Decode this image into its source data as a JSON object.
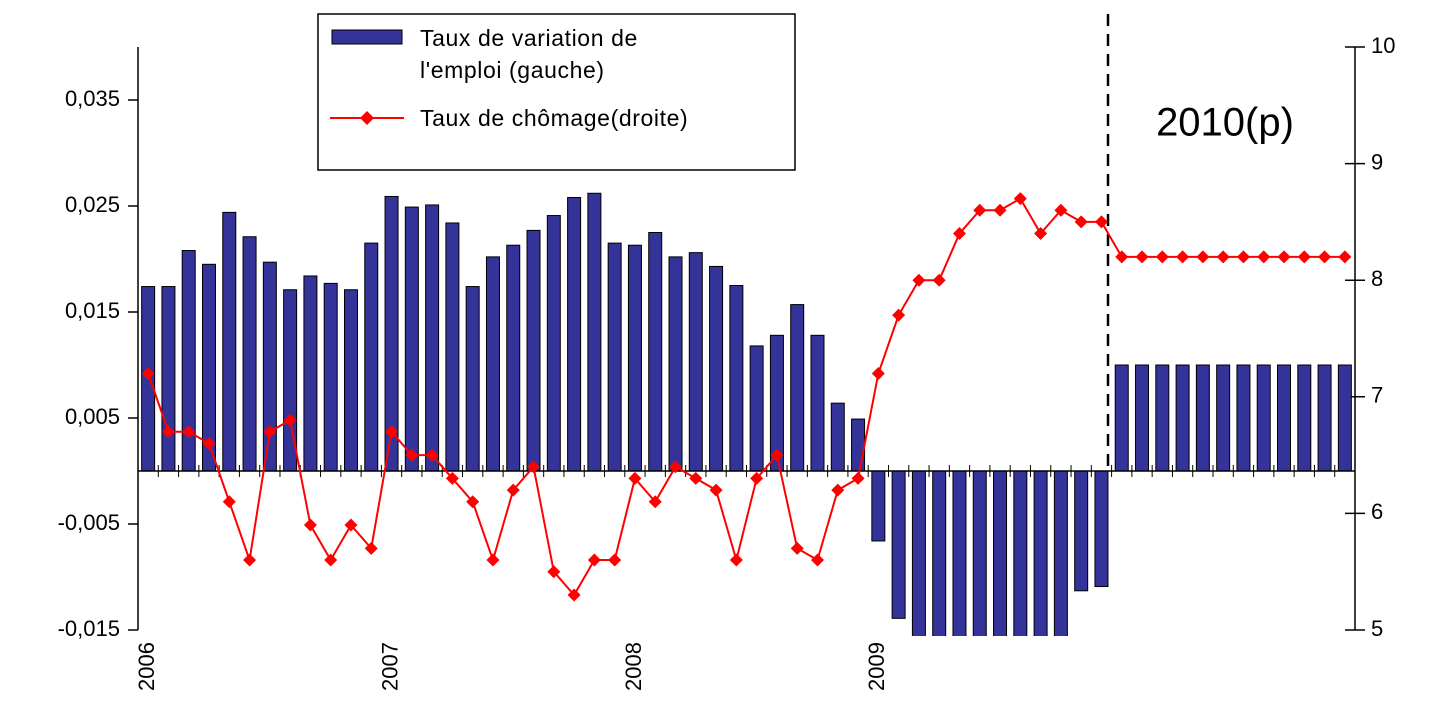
{
  "chart_data": {
    "type": "combo",
    "annotation": "2010(p)",
    "categories": [
      "2006",
      null,
      null,
      null,
      null,
      null,
      null,
      null,
      null,
      null,
      null,
      null,
      "2007",
      null,
      null,
      null,
      null,
      null,
      null,
      null,
      null,
      null,
      null,
      null,
      "2008",
      null,
      null,
      null,
      null,
      null,
      null,
      null,
      null,
      null,
      null,
      null,
      "2009",
      null,
      null,
      null,
      null,
      null,
      null,
      null,
      null,
      null,
      null,
      null,
      null,
      null,
      null,
      null,
      null,
      null,
      null,
      null,
      null,
      null,
      null,
      null
    ],
    "series": [
      {
        "name": "Taux de variation de l'emploi (gauche)",
        "type": "bar",
        "axis": "y",
        "color": "#333399",
        "values": [
          0.0174,
          0.0174,
          0.0208,
          0.0195,
          0.0244,
          0.0221,
          0.0197,
          0.0171,
          0.0184,
          0.0177,
          0.0171,
          0.0215,
          0.0259,
          0.0249,
          0.0251,
          0.0234,
          0.0174,
          0.0202,
          0.0213,
          0.0227,
          0.0241,
          0.0258,
          0.0262,
          0.0215,
          0.0213,
          0.0225,
          0.0202,
          0.0206,
          0.0193,
          0.0175,
          0.0118,
          0.0128,
          0.0157,
          0.0128,
          0.0064,
          0.0049,
          -0.0066,
          -0.0139,
          -0.016,
          -0.016,
          -0.016,
          -0.016,
          -0.016,
          -0.016,
          -0.016,
          -0.016,
          -0.0113,
          -0.0109,
          0.01,
          0.01,
          0.01,
          0.01,
          0.01,
          0.01,
          0.01,
          0.01,
          0.01,
          0.01,
          0.01,
          0.01
        ]
      },
      {
        "name": "Taux de chômage(droite)",
        "type": "line",
        "axis": "y2",
        "color": "#ff0000",
        "values": [
          7.2,
          6.7,
          6.7,
          6.6,
          6.1,
          5.6,
          6.7,
          6.8,
          5.9,
          5.6,
          5.9,
          5.7,
          6.7,
          6.5,
          6.5,
          6.3,
          6.1,
          5.6,
          6.2,
          6.4,
          5.5,
          5.3,
          5.6,
          5.6,
          6.3,
          6.1,
          6.4,
          6.3,
          6.2,
          5.6,
          6.3,
          6.5,
          5.7,
          5.6,
          6.2,
          6.3,
          7.2,
          7.7,
          8.0,
          8.0,
          8.4,
          8.6,
          8.6,
          8.7,
          8.4,
          8.6,
          8.5,
          8.5,
          8.2,
          8.2,
          8.2,
          8.2,
          8.2,
          8.2,
          8.2,
          8.2,
          8.2,
          8.2,
          8.2,
          8.2
        ]
      }
    ],
    "ylim": [
      -0.015,
      0.04
    ],
    "yticks": [
      {
        "value": 0.035,
        "label": "0,035"
      },
      {
        "value": 0.025,
        "label": "0,025"
      },
      {
        "value": 0.015,
        "label": "0,015"
      },
      {
        "value": 0.005,
        "label": "0,005"
      },
      {
        "value": -0.005,
        "label": "-0,005"
      },
      {
        "value": -0.015,
        "label": "-0,015"
      }
    ],
    "y2lim": [
      5,
      10
    ],
    "y2ticks": [
      5,
      6,
      7,
      8,
      9,
      10
    ],
    "legend": "top-center"
  }
}
